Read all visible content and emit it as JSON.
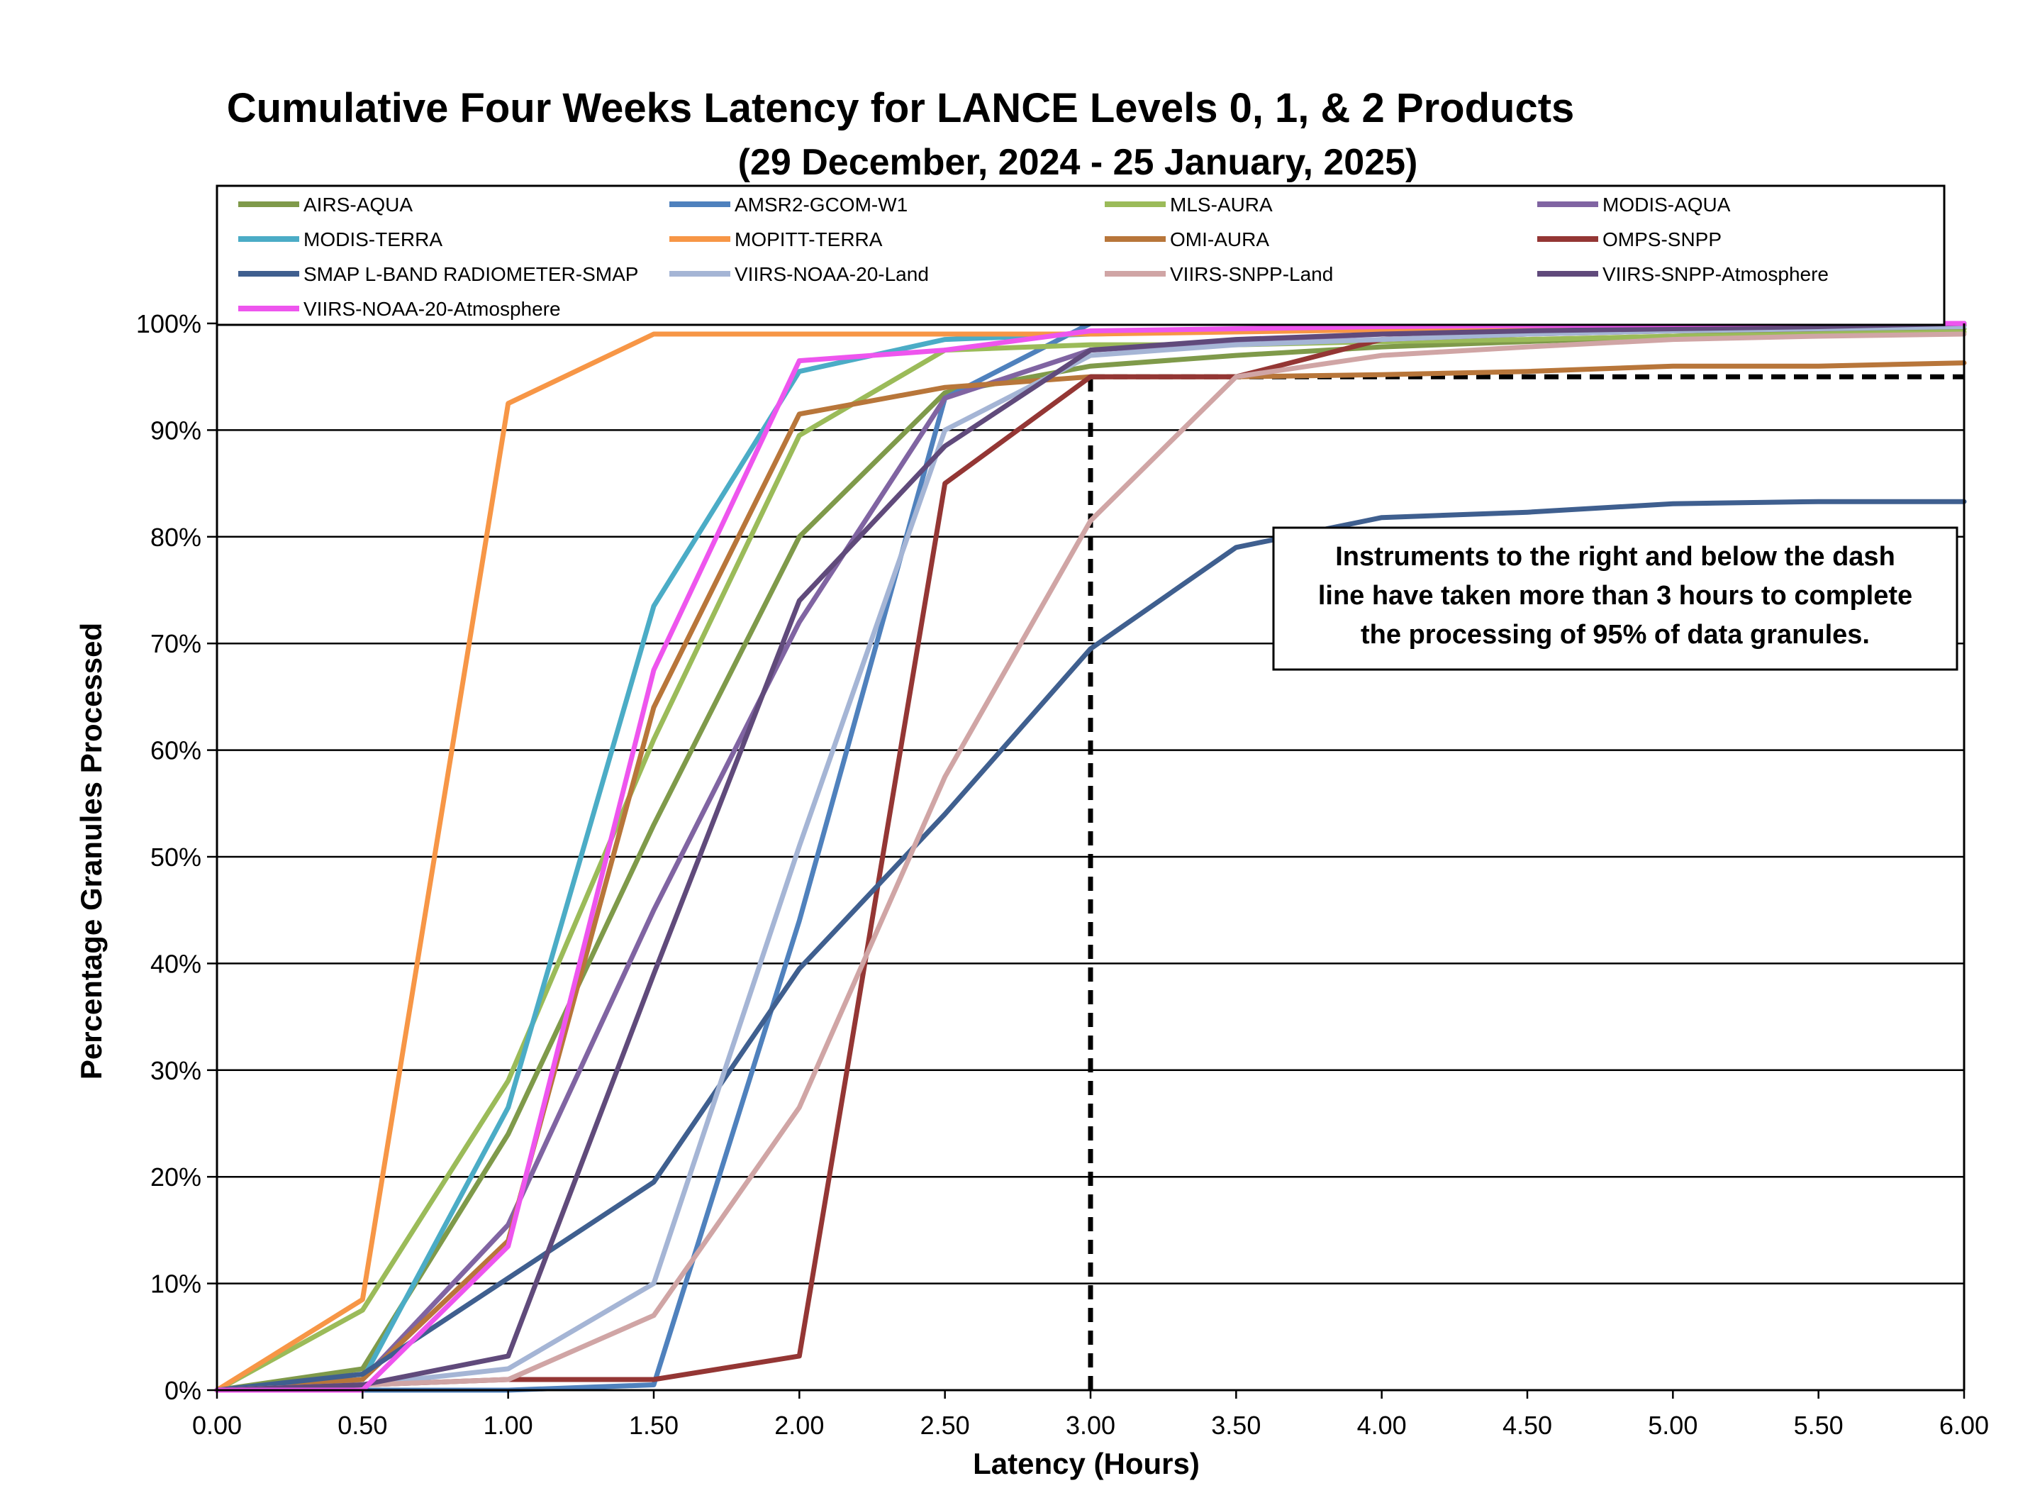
{
  "chart_data": {
    "type": "line",
    "title": "Cumulative Four Weeks Latency  for LANCE Levels 0, 1, & 2 Products",
    "subtitle": "(29 December, 2024  -  25 January, 2025)",
    "xlabel": "Latency (Hours)",
    "ylabel": "Percentage Granules Processed",
    "xlim": [
      0,
      6
    ],
    "ylim": [
      0,
      100
    ],
    "x_ticks": [
      "0.00",
      "0.50",
      "1.00",
      "1.50",
      "2.00",
      "2.50",
      "3.00",
      "3.50",
      "4.00",
      "4.50",
      "5.00",
      "5.50",
      "6.00"
    ],
    "y_ticks": [
      "0%",
      "10%",
      "20%",
      "30%",
      "40%",
      "50%",
      "60%",
      "70%",
      "80%",
      "90%",
      "100%"
    ],
    "grid": "horizontal",
    "legend_position": "top",
    "annotation": {
      "lines": [
        "Instruments to the right and below the dash",
        "line have taken more than 3 hours to complete",
        "the processing of 95% of data granules."
      ]
    },
    "threshold": {
      "x": 3.0,
      "y": 95
    },
    "x": [
      0,
      0.5,
      1.0,
      1.5,
      2.0,
      2.5,
      3.0,
      3.5,
      4.0,
      4.5,
      5.0,
      5.5,
      6.0
    ],
    "series": [
      {
        "name": "AIRS-AQUA",
        "color": "#7f9a4a",
        "values": [
          0,
          2,
          24,
          53,
          80,
          93.5,
          96,
          97,
          97.8,
          98.3,
          98.8,
          99.2,
          99.5
        ]
      },
      {
        "name": "AMSR2-GCOM-W1",
        "color": "#4f81bd",
        "values": [
          0,
          0,
          0,
          0.5,
          44,
          93,
          100,
          100,
          100,
          100,
          100,
          100,
          100
        ]
      },
      {
        "name": "MLS-AURA",
        "color": "#9bbb59",
        "values": [
          0,
          7.5,
          29,
          61,
          89.5,
          97.5,
          98,
          98,
          98.3,
          98.5,
          98.8,
          99,
          99.2
        ]
      },
      {
        "name": "MODIS-AQUA",
        "color": "#8064a2",
        "values": [
          0,
          1,
          15.5,
          45,
          72,
          93,
          97.5,
          98.3,
          99,
          99.2,
          99.5,
          99.7,
          100
        ]
      },
      {
        "name": "MODIS-TERRA",
        "color": "#4bacc6",
        "values": [
          0,
          1,
          26.5,
          73.5,
          95.5,
          98.5,
          99,
          99.3,
          99.5,
          99.7,
          99.8,
          99.9,
          100
        ]
      },
      {
        "name": "MOPITT-TERRA",
        "color": "#f79646",
        "values": [
          0,
          8.5,
          92.5,
          99,
          99,
          99,
          99,
          99.2,
          99.4,
          99.5,
          99.6,
          99.7,
          99.8
        ]
      },
      {
        "name": "OMI-AURA",
        "color": "#b8763a",
        "values": [
          0,
          1,
          14,
          64,
          91.5,
          94,
          95,
          95,
          95.2,
          95.5,
          96,
          96,
          96.3
        ]
      },
      {
        "name": "OMPS-SNPP",
        "color": "#943634",
        "values": [
          0,
          0.5,
          1,
          1,
          3.2,
          85,
          95,
          95,
          98.5,
          99,
          99.3,
          99.5,
          99.8
        ]
      },
      {
        "name": "SMAP L-BAND RADIOMETER-SMAP",
        "color": "#3f5f8f",
        "values": [
          0,
          1.5,
          10.5,
          19.5,
          39.5,
          54,
          69.5,
          79,
          81.8,
          82.3,
          83.1,
          83.3,
          83.3
        ]
      },
      {
        "name": "VIIRS-NOAA-20-Land",
        "color": "#a5b5d5",
        "values": [
          0,
          0.5,
          2,
          10,
          51,
          90,
          97,
          98,
          98.5,
          99,
          99.3,
          99.5,
          99.7
        ]
      },
      {
        "name": "VIIRS-SNPP-Land",
        "color": "#d0a5a5",
        "values": [
          0,
          0.5,
          1,
          7,
          26.5,
          57.5,
          81.5,
          95,
          97,
          97.8,
          98.5,
          98.8,
          99
        ]
      },
      {
        "name": "VIIRS-SNPP-Atmosphere",
        "color": "#604a7b",
        "values": [
          0,
          0.5,
          3.2,
          39,
          74,
          88.5,
          97.5,
          98.5,
          99,
          99.3,
          99.5,
          99.7,
          100
        ]
      },
      {
        "name": "VIIRS-NOAA-20-Atmosphere",
        "color": "#ee55ee",
        "values": [
          0,
          0,
          13.5,
          67.5,
          96.5,
          97.5,
          99.3,
          99.5,
          99.7,
          99.8,
          99.9,
          100,
          100
        ]
      }
    ]
  }
}
